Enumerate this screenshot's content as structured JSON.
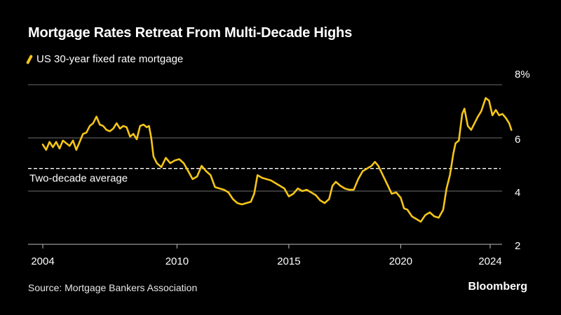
{
  "title": "Mortgage Rates Retreat From Multi-Decade Highs",
  "legend": {
    "label": "US 30-year fixed rate mortgage",
    "color": "#f5c518"
  },
  "source": "Source: Mortgage Bankers Association",
  "brand": "Bloomberg",
  "chart_data": {
    "type": "line",
    "title": "Mortgage Rates Retreat From Multi-Decade Highs",
    "xlabel": "",
    "ylabel": "",
    "xlim": [
      2004,
      2025
    ],
    "ylim": [
      2,
      8
    ],
    "x_ticks": [
      2004,
      2010,
      2015,
      2020,
      2024
    ],
    "x_tick_labels": [
      "2004",
      "2010",
      "2015",
      "2020",
      "2024"
    ],
    "y_ticks": [
      2,
      4,
      6,
      8
    ],
    "y_tick_labels": [
      "2",
      "4",
      "6",
      "8%"
    ],
    "grid": true,
    "reference_line": {
      "value": 4.85,
      "label": "Two-decade average",
      "style": "dashed"
    },
    "series": [
      {
        "name": "US 30-year fixed rate mortgage",
        "color": "#f5c518",
        "x": [
          2004.0,
          2004.15,
          2004.3,
          2004.45,
          2004.6,
          2004.75,
          2004.9,
          2005.05,
          2005.2,
          2005.35,
          2005.5,
          2005.65,
          2005.8,
          2005.95,
          2006.1,
          2006.25,
          2006.4,
          2006.55,
          2006.7,
          2006.85,
          2007.0,
          2007.15,
          2007.3,
          2007.45,
          2007.6,
          2007.75,
          2007.9,
          2008.05,
          2008.2,
          2008.35,
          2008.5,
          2008.65,
          2008.75,
          2008.85,
          2008.95,
          2009.1,
          2009.3,
          2009.5,
          2009.7,
          2009.9,
          2010.1,
          2010.3,
          2010.5,
          2010.7,
          2010.9,
          2011.1,
          2011.3,
          2011.5,
          2011.7,
          2011.9,
          2012.1,
          2012.3,
          2012.5,
          2012.7,
          2012.9,
          2013.1,
          2013.3,
          2013.45,
          2013.6,
          2013.8,
          2014.0,
          2014.2,
          2014.4,
          2014.6,
          2014.8,
          2015.0,
          2015.2,
          2015.4,
          2015.6,
          2015.8,
          2016.0,
          2016.2,
          2016.4,
          2016.6,
          2016.8,
          2016.95,
          2017.1,
          2017.3,
          2017.5,
          2017.7,
          2017.9,
          2018.1,
          2018.3,
          2018.5,
          2018.7,
          2018.85,
          2019.0,
          2019.2,
          2019.4,
          2019.6,
          2019.8,
          2020.0,
          2020.15,
          2020.3,
          2020.5,
          2020.7,
          2020.9,
          2021.1,
          2021.3,
          2021.5,
          2021.7,
          2021.9,
          2022.05,
          2022.2,
          2022.35,
          2022.45,
          2022.6,
          2022.75,
          2022.85,
          2023.0,
          2023.15,
          2023.3,
          2023.45,
          2023.6,
          2023.8,
          2023.95,
          2024.1,
          2024.25,
          2024.4,
          2024.55,
          2024.7,
          2024.85,
          2024.95
        ],
        "y": [
          5.75,
          5.55,
          5.85,
          5.65,
          5.85,
          5.6,
          5.9,
          5.8,
          5.7,
          5.9,
          5.55,
          5.85,
          6.15,
          6.2,
          6.45,
          6.55,
          6.8,
          6.5,
          6.45,
          6.3,
          6.25,
          6.35,
          6.55,
          6.35,
          6.45,
          6.4,
          6.05,
          6.15,
          5.95,
          6.45,
          6.5,
          6.4,
          6.45,
          6.0,
          5.3,
          5.05,
          4.9,
          5.25,
          5.05,
          5.15,
          5.2,
          5.05,
          4.75,
          4.45,
          4.55,
          4.95,
          4.75,
          4.6,
          4.15,
          4.1,
          4.05,
          3.95,
          3.7,
          3.55,
          3.5,
          3.55,
          3.6,
          3.9,
          4.6,
          4.5,
          4.45,
          4.4,
          4.3,
          4.2,
          4.1,
          3.8,
          3.9,
          4.1,
          4.0,
          4.05,
          3.95,
          3.85,
          3.65,
          3.55,
          3.7,
          4.2,
          4.35,
          4.2,
          4.1,
          4.05,
          4.05,
          4.45,
          4.75,
          4.85,
          4.95,
          5.1,
          4.95,
          4.6,
          4.25,
          3.9,
          3.95,
          3.75,
          3.35,
          3.3,
          3.05,
          2.95,
          2.85,
          3.1,
          3.2,
          3.05,
          3.0,
          3.3,
          4.1,
          4.6,
          5.4,
          5.8,
          5.9,
          6.9,
          7.1,
          6.45,
          6.3,
          6.55,
          6.8,
          7.0,
          7.5,
          7.4,
          6.85,
          7.05,
          6.85,
          6.9,
          6.75,
          6.55,
          6.3
        ]
      }
    ]
  }
}
